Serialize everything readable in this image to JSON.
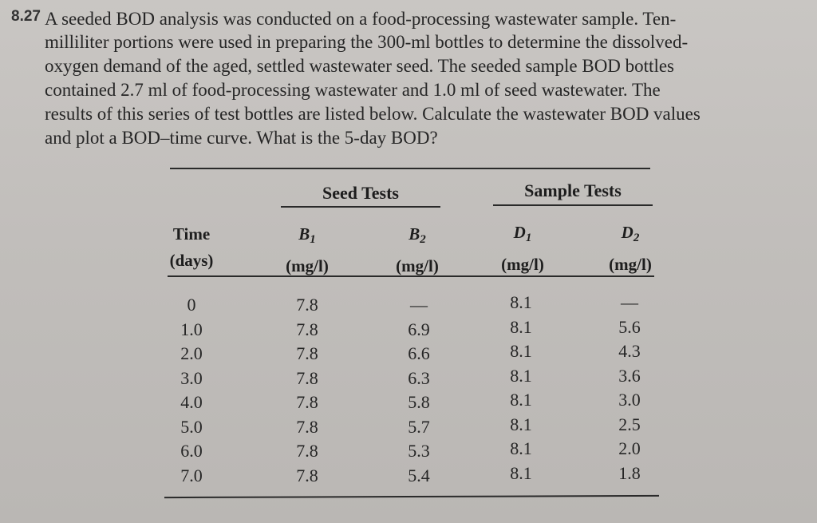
{
  "problem": {
    "number": "8.27",
    "lines": [
      "A seeded BOD analysis was conducted on a food-processing wastewater sample. Ten-",
      "milliliter portions were used in preparing the 300-ml bottles to determine the dissolved-",
      "oxygen demand of the aged, settled wastewater seed. The seeded sample BOD bottles",
      "contained 2.7 ml of food-processing wastewater and 1.0 ml of seed wastewater. The",
      "results of this series of test bottles are listed below. Calculate the wastewater BOD values",
      "and plot a BOD–time curve. What is the 5-day BOD?"
    ]
  },
  "table": {
    "group_headers": {
      "seed": "Seed Tests",
      "sample": "Sample Tests"
    },
    "columns": [
      {
        "line1": "Time",
        "symbol": "",
        "subscript": "",
        "unit": "(days)"
      },
      {
        "line1": "",
        "symbol": "B",
        "subscript": "1",
        "unit": "(mg/l)"
      },
      {
        "line1": "",
        "symbol": "B",
        "subscript": "2",
        "unit": "(mg/l)"
      },
      {
        "line1": "",
        "symbol": "D",
        "subscript": "1",
        "unit": "(mg/l)"
      },
      {
        "line1": "",
        "symbol": "D",
        "subscript": "2",
        "unit": "(mg/l)"
      }
    ],
    "time": [
      "0",
      "1.0",
      "2.0",
      "3.0",
      "4.0",
      "5.0",
      "6.0",
      "7.0"
    ],
    "b1": [
      "7.8",
      "7.8",
      "7.8",
      "7.8",
      "7.8",
      "7.8",
      "7.8",
      "7.8"
    ],
    "b2": [
      "—",
      "6.9",
      "6.6",
      "6.3",
      "5.8",
      "5.7",
      "5.3",
      "5.4"
    ],
    "d1": [
      "8.1",
      "8.1",
      "8.1",
      "8.1",
      "8.1",
      "8.1",
      "8.1",
      "8.1"
    ],
    "d2": [
      "—",
      "5.6",
      "4.3",
      "3.6",
      "3.0",
      "2.5",
      "2.0",
      "1.8"
    ]
  }
}
